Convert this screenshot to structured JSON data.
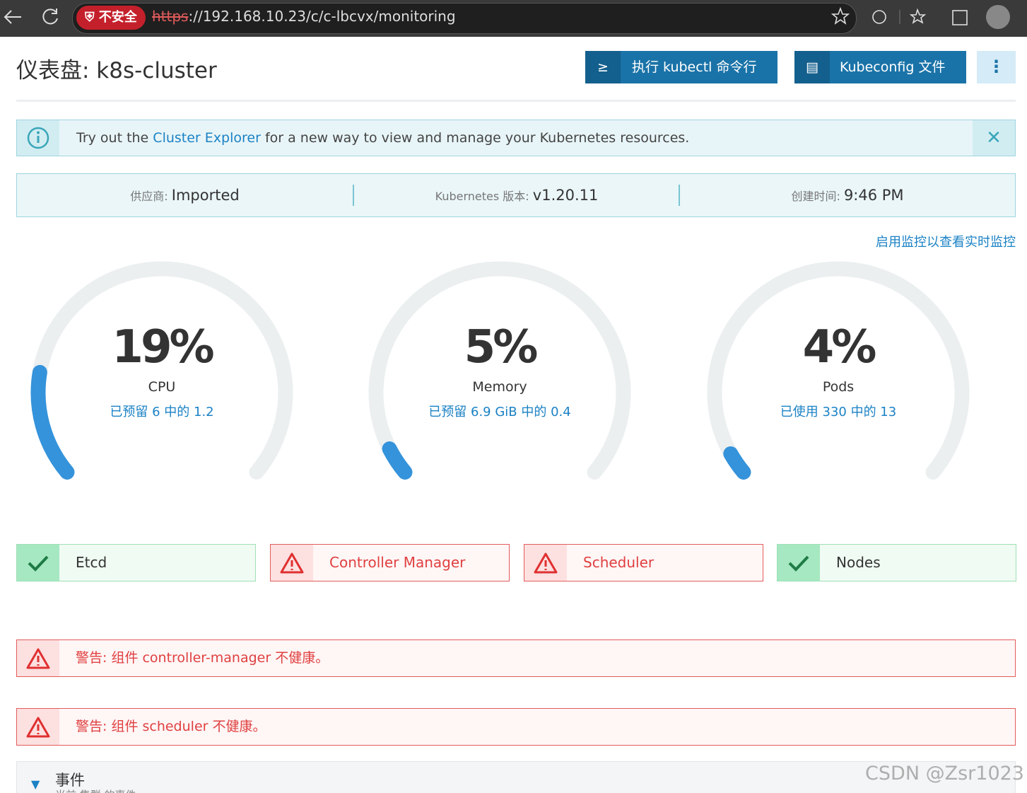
{
  "browser": {
    "security": "不安全",
    "url_scheme": "https",
    "url_rest": "://192.168.10.23/c/c-lbcvx/monitoring"
  },
  "header": {
    "title": "仪表盘: k8s-cluster",
    "buttons": [
      {
        "icon": "≥",
        "label": "执行 kubectl 命令行"
      },
      {
        "label": "Kubeconfig 文件"
      }
    ]
  },
  "banner": {
    "before": "Try out the",
    "link": "Cluster Explorer",
    "after": "for a new way to view and manage your Kubernetes resources."
  },
  "info": [
    {
      "label": "供应商:",
      "value": "Imported"
    },
    {
      "label": "Kubernetes 版本:",
      "value": "v1.20.11"
    },
    {
      "label": "创建时间:",
      "value": "9:46 PM"
    }
  ],
  "monitoring_link": "启用监控以查看实时监控",
  "gauges": [
    {
      "value": 19,
      "label": "19%",
      "name": "CPU",
      "detail": "已预留 6 中的 1.2"
    },
    {
      "value": 5,
      "label": "5%",
      "name": "Memory",
      "detail": "已预留 6.9 GiB 中的 0.4"
    },
    {
      "value": 4,
      "label": "4%",
      "name": "Pods",
      "detail": "已使用 330 中的 13"
    }
  ],
  "components": [
    {
      "name": "Etcd",
      "status": "ok"
    },
    {
      "name": "Controller Manager",
      "status": "error"
    },
    {
      "name": "Scheduler",
      "status": "error"
    },
    {
      "name": "Nodes",
      "status": "ok"
    }
  ],
  "alerts": [
    "警告: 组件 controller-manager 不健康。",
    "警告: 组件 scheduler 不健康。"
  ],
  "events": {
    "title": "事件",
    "subtitle": "当前 集群 的事件"
  },
  "watermark": "CSDN @Zsr1023"
}
